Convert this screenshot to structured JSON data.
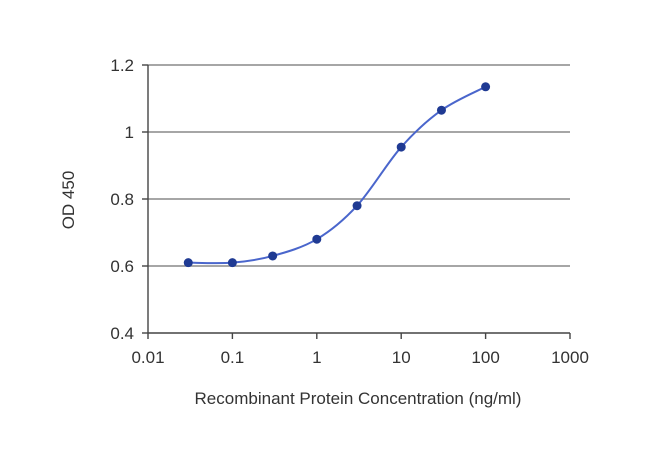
{
  "chart_data": {
    "type": "line",
    "title": "",
    "xlabel": "Recombinant Protein Concentration (ng/ml)",
    "ylabel": "OD 450",
    "x_scale": "log",
    "xlim": [
      0.01,
      1000
    ],
    "ylim": [
      0.4,
      1.2
    ],
    "x_ticks": [
      0.01,
      0.1,
      1,
      10,
      100,
      1000
    ],
    "x_tick_labels": [
      "0.01",
      "0.1",
      "1",
      "10",
      "100",
      "1000"
    ],
    "y_ticks": [
      0.4,
      0.6,
      0.8,
      1.0,
      1.2
    ],
    "y_tick_labels": [
      "0.4",
      "0.6",
      "0.8",
      "1",
      "1.2"
    ],
    "grid": "horizontal",
    "legend": "none",
    "series": [
      {
        "x": [
          0.03,
          0.1,
          0.3,
          1,
          3,
          10,
          30,
          100
        ],
        "y": [
          0.61,
          0.61,
          0.63,
          0.68,
          0.78,
          0.955,
          1.065,
          1.135
        ]
      }
    ],
    "colors": {
      "line": "#4a66cc",
      "marker": "#1f3a93",
      "grid": "#888888",
      "axis": "#444444"
    }
  }
}
